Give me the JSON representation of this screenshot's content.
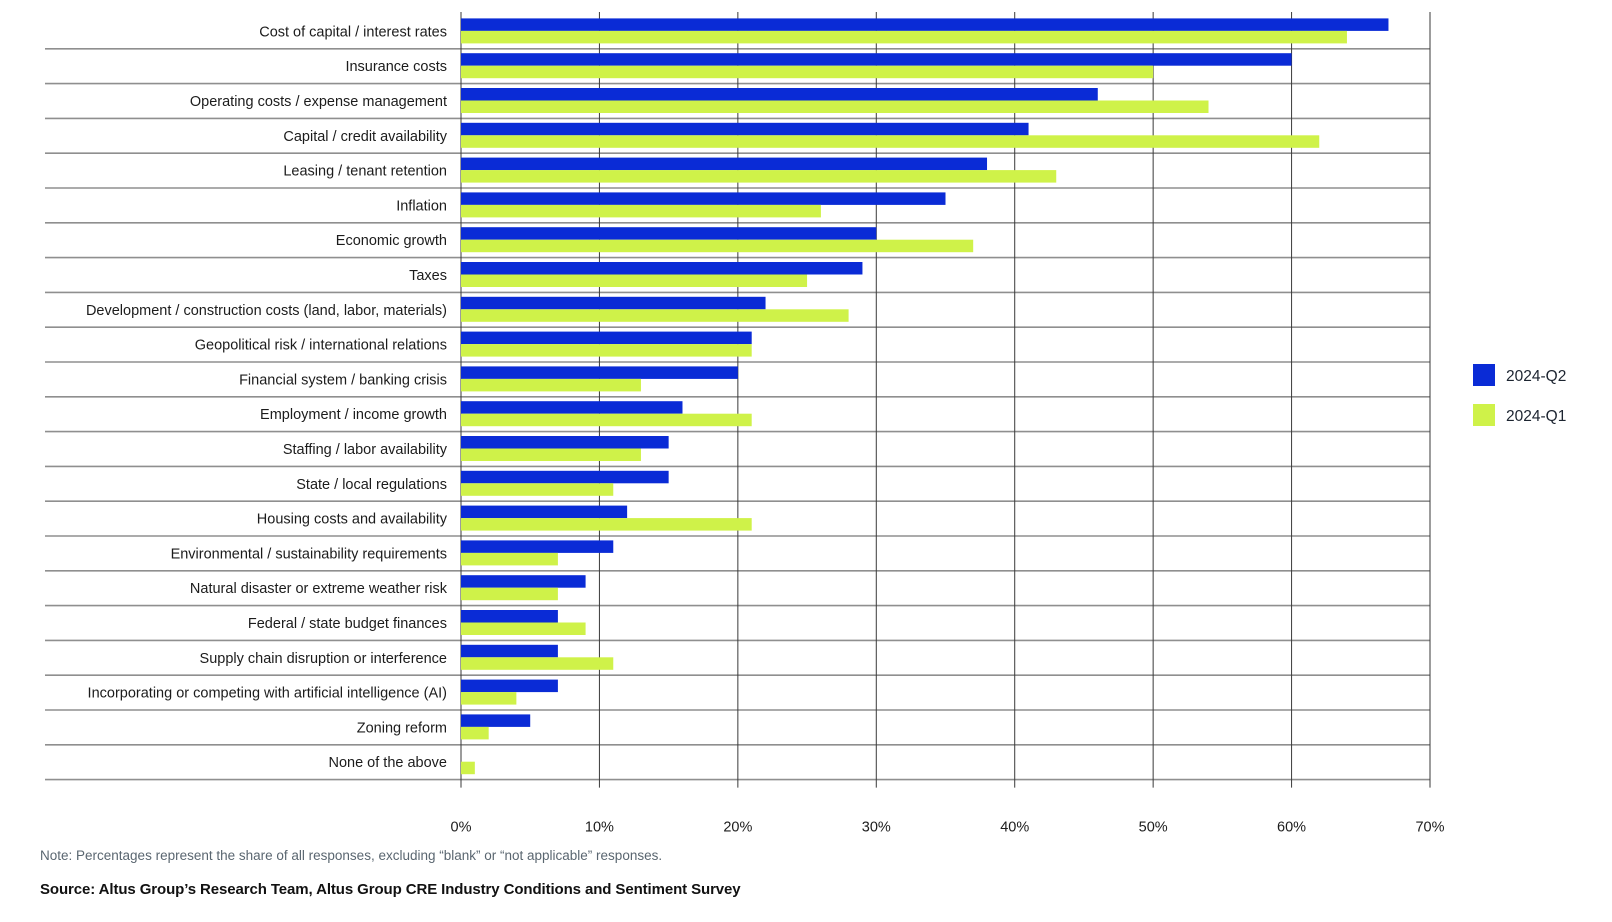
{
  "chart_data": {
    "type": "bar",
    "orientation": "horizontal",
    "title": "",
    "xlabel": "",
    "ylabel": "",
    "xlim": [
      0,
      70
    ],
    "x_ticks": [
      "0%",
      "10%",
      "20%",
      "30%",
      "40%",
      "50%",
      "60%",
      "70%"
    ],
    "x_tick_values": [
      0,
      10,
      20,
      30,
      40,
      50,
      60,
      70
    ],
    "grid": true,
    "legend_position": "right",
    "categories": [
      "Cost of capital / interest rates",
      "Insurance costs",
      "Operating costs / expense management",
      "Capital / credit availability",
      "Leasing / tenant retention",
      "Inflation",
      "Economic growth",
      "Taxes",
      "Development / construction costs (land, labor, materials)",
      "Geopolitical risk / international relations",
      "Financial system / banking crisis",
      "Employment / income growth",
      "Staffing / labor availability",
      "State / local regulations",
      "Housing costs and availability",
      "Environmental / sustainability requirements",
      "Natural disaster or extreme weather risk",
      "Federal / state budget finances",
      "Supply chain disruption or interference",
      "Incorporating or competing with artificial intelligence (AI)",
      "Zoning reform",
      "None of the above"
    ],
    "series": [
      {
        "name": "2024-Q2",
        "color": "#0a2bd6",
        "values": [
          67,
          60,
          46,
          41,
          38,
          35,
          30,
          29,
          22,
          21,
          20,
          16,
          15,
          15,
          12,
          11,
          9,
          7,
          7,
          7,
          5,
          0
        ]
      },
      {
        "name": "2024-Q1",
        "color": "#cff249",
        "values": [
          64,
          50,
          54,
          62,
          43,
          26,
          37,
          25,
          28,
          21,
          13,
          21,
          13,
          11,
          21,
          7,
          7,
          9,
          11,
          4,
          2,
          1
        ]
      }
    ],
    "unit": "%"
  },
  "footer": {
    "note": "Note: Percentages represent the share of all responses, excluding “blank” or “not applicable” responses.",
    "source": "Source: Altus Group’s Research Team, Altus Group CRE Industry Conditions and Sentiment Survey"
  }
}
